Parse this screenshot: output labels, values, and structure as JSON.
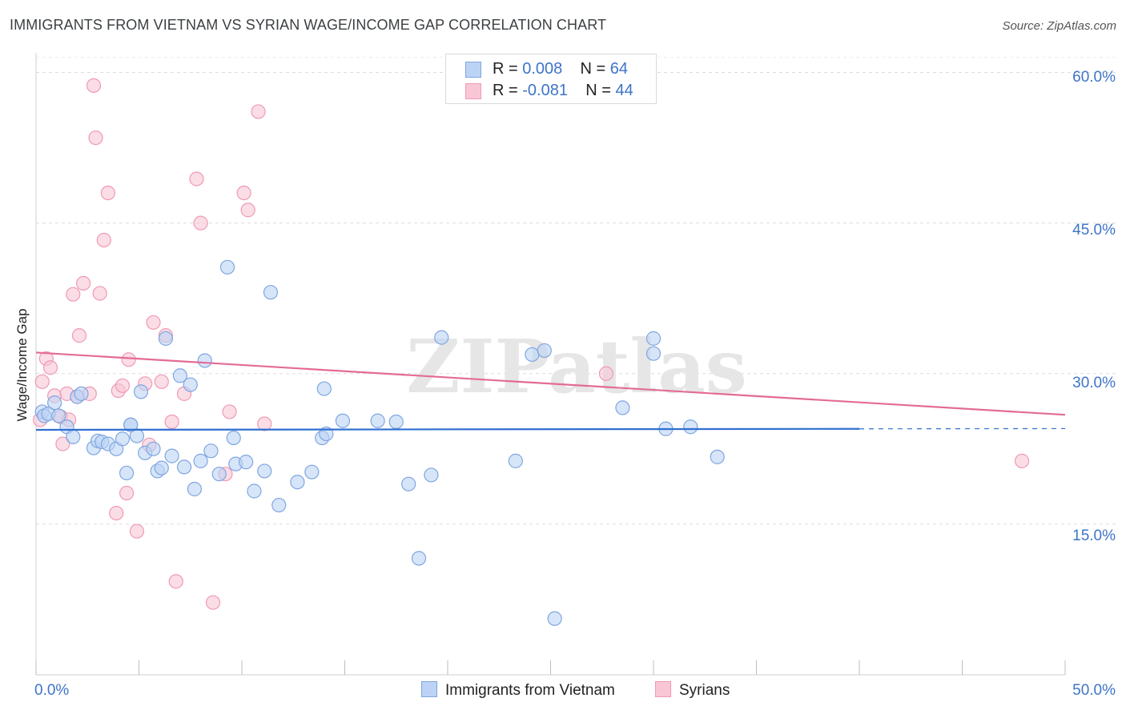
{
  "title": "IMMIGRANTS FROM VIETNAM VS SYRIAN WAGE/INCOME GAP CORRELATION CHART",
  "source": "Source: ZipAtlas.com",
  "watermark": "ZIPatlas",
  "legend": {
    "rows": [
      {
        "r_label": "R = ",
        "r_value": "0.008",
        "n_label": "N = ",
        "n_value": "64"
      },
      {
        "r_label": "R = ",
        "r_value": "-0.081",
        "n_label": "N = ",
        "n_value": "44"
      }
    ]
  },
  "colors": {
    "blue_fill": "#bcd3f5",
    "blue_stroke": "#7fa6e0",
    "blue_line": "#2f6fd0",
    "pink_fill": "#f9c6d6",
    "pink_stroke": "#ef9ab5",
    "pink_line": "#e36b96",
    "axis_text": "#3e74c9"
  },
  "chart_data": {
    "type": "scatter",
    "title": "IMMIGRANTS FROM VIETNAM VS SYRIAN WAGE/INCOME GAP CORRELATION CHART",
    "xlabel": "",
    "ylabel": "Wage/Income Gap",
    "xlim": [
      0,
      50
    ],
    "ylim": [
      0,
      61
    ],
    "x_tick_labels": [
      "0.0%",
      "50.0%"
    ],
    "y_ticks": [
      15,
      30,
      45,
      60
    ],
    "y_tick_labels": [
      "15.0%",
      "30.0%",
      "45.0%",
      "60.0%"
    ],
    "grid": true,
    "legend_position": "top-center",
    "series": [
      {
        "name": "Immigrants from Vietnam",
        "R": 0.008,
        "N": 64,
        "trend": {
          "x0": 0,
          "y0": 24.4,
          "x1": 40,
          "y1": 24.5,
          "dashed_to": 50
        },
        "points": [
          [
            0.3,
            26.2
          ],
          [
            0.4,
            25.8
          ],
          [
            0.6,
            26.0
          ],
          [
            0.9,
            27.1
          ],
          [
            1.1,
            25.8
          ],
          [
            1.5,
            24.7
          ],
          [
            1.8,
            23.7
          ],
          [
            2.0,
            27.7
          ],
          [
            2.2,
            28.0
          ],
          [
            2.8,
            22.6
          ],
          [
            3.0,
            23.3
          ],
          [
            3.2,
            23.2
          ],
          [
            3.5,
            23.0
          ],
          [
            3.9,
            22.5
          ],
          [
            4.2,
            23.5
          ],
          [
            4.4,
            20.1
          ],
          [
            4.6,
            24.9
          ],
          [
            4.9,
            23.8
          ],
          [
            5.1,
            28.2
          ],
          [
            5.3,
            22.1
          ],
          [
            5.7,
            22.5
          ],
          [
            5.9,
            20.3
          ],
          [
            6.1,
            20.6
          ],
          [
            6.3,
            33.5
          ],
          [
            6.6,
            21.8
          ],
          [
            7.0,
            29.8
          ],
          [
            7.2,
            20.7
          ],
          [
            7.5,
            28.9
          ],
          [
            7.7,
            18.5
          ],
          [
            8.0,
            21.3
          ],
          [
            8.2,
            31.3
          ],
          [
            8.5,
            22.3
          ],
          [
            8.9,
            20.0
          ],
          [
            9.3,
            40.6
          ],
          [
            9.6,
            23.6
          ],
          [
            9.7,
            21.0
          ],
          [
            10.2,
            21.2
          ],
          [
            10.6,
            18.3
          ],
          [
            11.1,
            20.3
          ],
          [
            11.4,
            38.1
          ],
          [
            11.8,
            16.9
          ],
          [
            12.7,
            19.2
          ],
          [
            13.4,
            20.2
          ],
          [
            13.9,
            23.6
          ],
          [
            14.1,
            24.0
          ],
          [
            14.0,
            28.5
          ],
          [
            14.9,
            25.3
          ],
          [
            16.6,
            25.3
          ],
          [
            17.5,
            25.2
          ],
          [
            18.1,
            19.0
          ],
          [
            18.6,
            11.6
          ],
          [
            19.2,
            19.9
          ],
          [
            19.7,
            33.6
          ],
          [
            23.3,
            21.3
          ],
          [
            24.1,
            31.9
          ],
          [
            24.7,
            32.3
          ],
          [
            25.2,
            5.6
          ],
          [
            28.5,
            26.6
          ],
          [
            30.0,
            33.5
          ],
          [
            30.0,
            32.0
          ],
          [
            30.6,
            24.5
          ],
          [
            31.8,
            24.7
          ],
          [
            33.1,
            21.7
          ],
          [
            4.6,
            24.9
          ]
        ]
      },
      {
        "name": "Syrians",
        "R": -0.081,
        "N": 44,
        "trend": {
          "x0": 0,
          "y0": 32.1,
          "x1": 50,
          "y1": 25.9
        },
        "points": [
          [
            0.2,
            25.4
          ],
          [
            0.3,
            29.2
          ],
          [
            0.5,
            31.5
          ],
          [
            0.7,
            30.6
          ],
          [
            0.9,
            27.8
          ],
          [
            1.2,
            25.7
          ],
          [
            1.3,
            23.0
          ],
          [
            1.5,
            28.0
          ],
          [
            1.6,
            25.4
          ],
          [
            1.8,
            37.9
          ],
          [
            2.0,
            27.7
          ],
          [
            2.1,
            33.8
          ],
          [
            2.3,
            39.0
          ],
          [
            2.6,
            28.0
          ],
          [
            2.8,
            58.7
          ],
          [
            2.9,
            53.5
          ],
          [
            3.1,
            38.0
          ],
          [
            3.3,
            43.3
          ],
          [
            3.5,
            48.0
          ],
          [
            3.9,
            16.1
          ],
          [
            4.0,
            28.3
          ],
          [
            4.2,
            28.8
          ],
          [
            4.4,
            18.1
          ],
          [
            4.5,
            31.4
          ],
          [
            4.9,
            14.3
          ],
          [
            5.3,
            29.0
          ],
          [
            5.5,
            22.9
          ],
          [
            5.7,
            35.1
          ],
          [
            6.1,
            29.2
          ],
          [
            6.3,
            33.8
          ],
          [
            6.6,
            25.2
          ],
          [
            6.8,
            9.3
          ],
          [
            7.2,
            28.0
          ],
          [
            7.8,
            49.4
          ],
          [
            8.0,
            45.0
          ],
          [
            8.6,
            7.2
          ],
          [
            9.2,
            20.0
          ],
          [
            9.4,
            26.2
          ],
          [
            10.1,
            48.0
          ],
          [
            10.3,
            46.3
          ],
          [
            10.8,
            56.1
          ],
          [
            11.1,
            25.0
          ],
          [
            27.7,
            30.0
          ],
          [
            47.9,
            21.3
          ]
        ]
      }
    ]
  }
}
